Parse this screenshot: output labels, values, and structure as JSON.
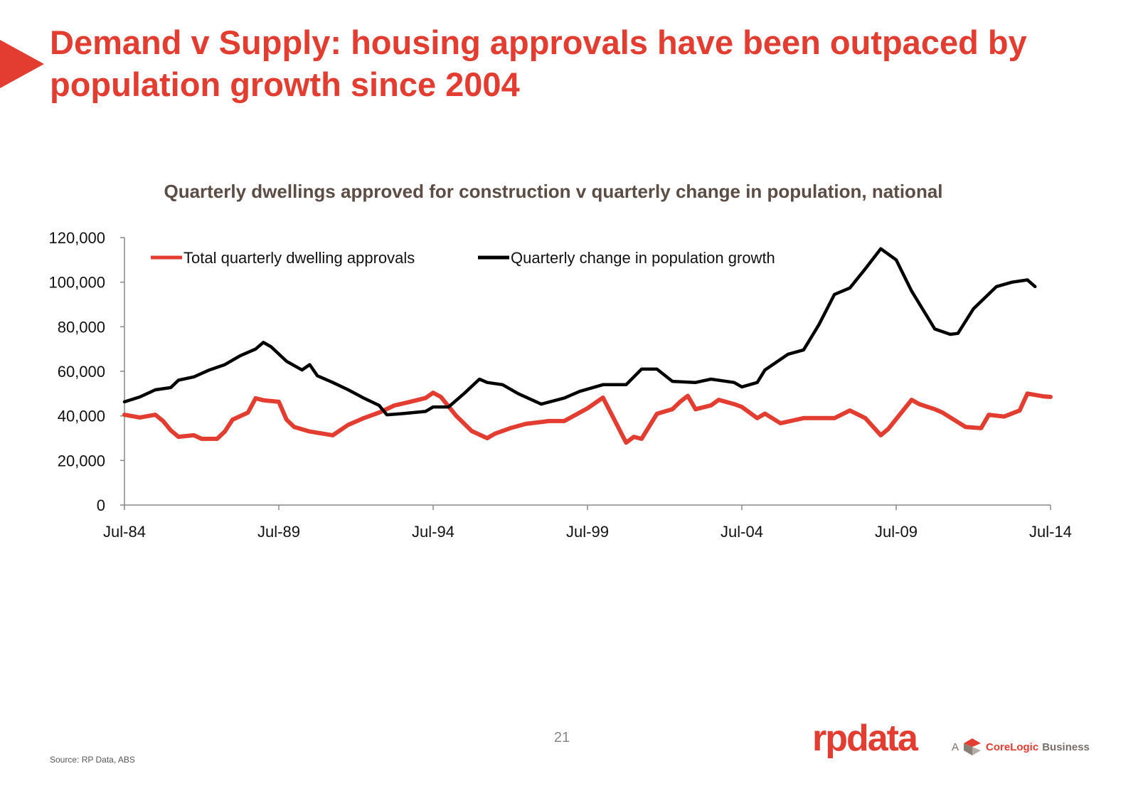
{
  "slide": {
    "title": "Demand v Supply: housing approvals have been outpaced by population growth since 2004",
    "page_number": "21",
    "source": "Source:  RP Data, ABS",
    "logo": "rpdata",
    "tagline_prefix": "A",
    "tagline_brand": "CoreLogic",
    "tagline_suffix": "Business",
    "accent_color": "#E23D30"
  },
  "chart_data": {
    "type": "line",
    "title": "Quarterly dwellings approved for construction v quarterly change in population, national",
    "xlabel": "",
    "ylabel": "",
    "ylim": [
      0,
      120000
    ],
    "yticks": [
      "0",
      "20,000",
      "40,000",
      "60,000",
      "80,000",
      "100,000",
      "120,000"
    ],
    "ytick_values": [
      0,
      20000,
      40000,
      60000,
      80000,
      100000,
      120000
    ],
    "xticks": [
      "Jul-84",
      "Jul-89",
      "Jul-94",
      "Jul-99",
      "Jul-04",
      "Jul-09",
      "Jul-14"
    ],
    "xtick_values": [
      "1984-07",
      "1989-07",
      "1994-07",
      "1999-07",
      "2004-07",
      "2009-07",
      "2014-07"
    ],
    "xlim": [
      "1984-07",
      "2014-07"
    ],
    "grid": false,
    "legend": "top-left",
    "series": [
      {
        "name": "Total quarterly dwelling approvals",
        "color": "#E23D30",
        "points": [
          [
            "1984-07",
            40500
          ],
          [
            "1985-01",
            39300
          ],
          [
            "1985-07",
            40500
          ],
          [
            "1985-10",
            37700
          ],
          [
            "1986-01",
            33500
          ],
          [
            "1986-04",
            30600
          ],
          [
            "1986-10",
            31300
          ],
          [
            "1987-01",
            29700
          ],
          [
            "1987-07",
            29700
          ],
          [
            "1987-10",
            33000
          ],
          [
            "1988-01",
            38300
          ],
          [
            "1988-07",
            41500
          ],
          [
            "1988-10",
            47900
          ],
          [
            "1989-01",
            47000
          ],
          [
            "1989-07",
            46300
          ],
          [
            "1989-10",
            38300
          ],
          [
            "1990-01",
            35000
          ],
          [
            "1990-07",
            33000
          ],
          [
            "1991-04",
            31300
          ],
          [
            "1991-10",
            36000
          ],
          [
            "1992-04",
            39000
          ],
          [
            "1992-10",
            41500
          ],
          [
            "1993-04",
            44700
          ],
          [
            "1993-10",
            46300
          ],
          [
            "1994-04",
            48000
          ],
          [
            "1994-07",
            50400
          ],
          [
            "1994-10",
            48500
          ],
          [
            "1995-04",
            40000
          ],
          [
            "1995-10",
            33200
          ],
          [
            "1996-04",
            30000
          ],
          [
            "1996-07",
            32000
          ],
          [
            "1997-01",
            34500
          ],
          [
            "1997-07",
            36400
          ],
          [
            "1998-04",
            37700
          ],
          [
            "1998-10",
            37700
          ],
          [
            "1999-07",
            43400
          ],
          [
            "2000-01",
            48200
          ],
          [
            "2000-04",
            41500
          ],
          [
            "2000-10",
            28000
          ],
          [
            "2001-01",
            30600
          ],
          [
            "2001-04",
            29700
          ],
          [
            "2001-10",
            40900
          ],
          [
            "2002-04",
            43000
          ],
          [
            "2002-07",
            46300
          ],
          [
            "2002-10",
            49000
          ],
          [
            "2003-01",
            43000
          ],
          [
            "2003-07",
            44700
          ],
          [
            "2003-10",
            47200
          ],
          [
            "2004-04",
            45300
          ],
          [
            "2004-07",
            44000
          ],
          [
            "2005-01",
            39000
          ],
          [
            "2005-04",
            41000
          ],
          [
            "2005-10",
            36700
          ],
          [
            "2006-07",
            39000
          ],
          [
            "2006-10",
            39000
          ],
          [
            "2007-07",
            39000
          ],
          [
            "2008-01",
            42400
          ],
          [
            "2008-07",
            39000
          ],
          [
            "2009-01",
            31300
          ],
          [
            "2009-04",
            34200
          ],
          [
            "2010-01",
            47200
          ],
          [
            "2010-04",
            45300
          ],
          [
            "2010-10",
            43000
          ],
          [
            "2011-01",
            41500
          ],
          [
            "2011-10",
            35000
          ],
          [
            "2012-04",
            34500
          ],
          [
            "2012-07",
            40500
          ],
          [
            "2013-01",
            39700
          ],
          [
            "2013-07",
            42400
          ],
          [
            "2013-10",
            50000
          ],
          [
            "2014-04",
            48800
          ],
          [
            "2014-07",
            48500
          ]
        ]
      },
      {
        "name": "Quarterly change in population growth",
        "color": "#000000",
        "points": [
          [
            "1984-07",
            46300
          ],
          [
            "1985-01",
            48500
          ],
          [
            "1985-07",
            51700
          ],
          [
            "1986-01",
            52700
          ],
          [
            "1986-04",
            56000
          ],
          [
            "1986-10",
            57500
          ],
          [
            "1987-04",
            60600
          ],
          [
            "1987-10",
            63000
          ],
          [
            "1988-04",
            67000
          ],
          [
            "1988-10",
            70000
          ],
          [
            "1989-01",
            73000
          ],
          [
            "1989-04",
            71000
          ],
          [
            "1989-10",
            64500
          ],
          [
            "1990-04",
            60600
          ],
          [
            "1990-07",
            63000
          ],
          [
            "1990-10",
            58000
          ],
          [
            "1991-04",
            55000
          ],
          [
            "1991-10",
            51700
          ],
          [
            "1992-04",
            48000
          ],
          [
            "1992-10",
            44700
          ],
          [
            "1993-01",
            40500
          ],
          [
            "1993-07",
            41000
          ],
          [
            "1994-04",
            42000
          ],
          [
            "1994-07",
            44000
          ],
          [
            "1995-01",
            44000
          ],
          [
            "1995-07",
            50000
          ],
          [
            "1996-01",
            56500
          ],
          [
            "1996-04",
            55000
          ],
          [
            "1996-10",
            54000
          ],
          [
            "1997-04",
            50000
          ],
          [
            "1998-01",
            45300
          ],
          [
            "1998-10",
            48000
          ],
          [
            "1999-04",
            51000
          ],
          [
            "2000-01",
            54000
          ],
          [
            "2000-10",
            54000
          ],
          [
            "2001-04",
            61000
          ],
          [
            "2001-10",
            61000
          ],
          [
            "2002-04",
            55500
          ],
          [
            "2003-01",
            55000
          ],
          [
            "2003-07",
            56500
          ],
          [
            "2004-04",
            55000
          ],
          [
            "2004-07",
            53000
          ],
          [
            "2005-01",
            55000
          ],
          [
            "2005-04",
            60600
          ],
          [
            "2006-01",
            67700
          ],
          [
            "2006-07",
            69600
          ],
          [
            "2007-01",
            81000
          ],
          [
            "2007-07",
            94500
          ],
          [
            "2008-01",
            97400
          ],
          [
            "2008-07",
            106000
          ],
          [
            "2009-01",
            115000
          ],
          [
            "2009-07",
            110000
          ],
          [
            "2010-01",
            96000
          ],
          [
            "2010-10",
            79000
          ],
          [
            "2011-04",
            76600
          ],
          [
            "2011-07",
            77000
          ],
          [
            "2012-01",
            88000
          ],
          [
            "2012-10",
            98000
          ],
          [
            "2013-04",
            100000
          ],
          [
            "2013-10",
            101000
          ],
          [
            "2014-01",
            98000
          ]
        ]
      }
    ]
  }
}
